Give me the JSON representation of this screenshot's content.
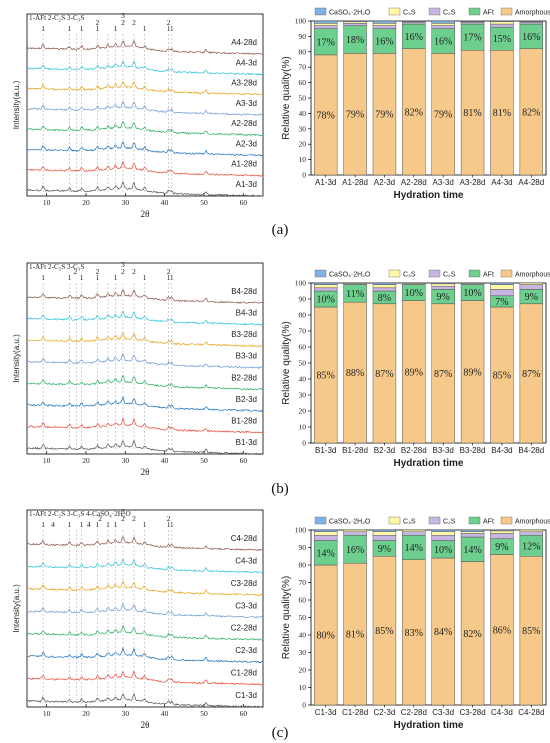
{
  "panels": [
    {
      "id": "a",
      "caption": "(a)",
      "xrd": {
        "legend": [
          "1-AFt",
          "2-C₂S",
          "3-C₃S"
        ],
        "xlabel": "2θ",
        "ylabel": "Intensity(a.u.)",
        "xticks": [
          10,
          20,
          30,
          40,
          50,
          60
        ],
        "xlim": [
          5,
          65
        ],
        "peak_labels": [
          {
            "text": "1",
            "x": 9.1
          },
          {
            "text": "1",
            "x": 15.8
          },
          {
            "text": "1",
            "x": 18.9
          },
          {
            "text": "1",
            "x": 22.9
          },
          {
            "text": "1",
            "x": 27.5
          },
          {
            "text": "1",
            "x": 34.9
          },
          {
            "text": "1",
            "x": 41.0
          },
          {
            "text": "1",
            "x": 41.8
          },
          {
            "text": "2",
            "x": 22.9
          },
          {
            "text": "2",
            "x": 29.4
          },
          {
            "text": "2",
            "x": 32.2
          },
          {
            "text": "2",
            "x": 41.0
          },
          {
            "text": "3",
            "x": 29.4
          }
        ],
        "patterns": [
          "A4-28d",
          "A4-3d",
          "A3-28d",
          "A3-3d",
          "A2-28d",
          "A2-3d",
          "A1-28d",
          "A1-3d"
        ],
        "colors": [
          "#8c564b",
          "#2ec4d9",
          "#e8a317",
          "#6c9bd2",
          "#27ae60",
          "#1e73be",
          "#e74c3c",
          "#555555"
        ]
      },
      "bars": {
        "legend": [
          "CaSO₄·2H₂O",
          "C₃S",
          "C₂S",
          "AFt",
          "Amorphous"
        ],
        "ylabel": "Relative quality(%)",
        "xlabel": "Hydration time",
        "yticks": [
          0,
          10,
          20,
          30,
          40,
          50,
          60,
          70,
          80,
          90,
          100
        ],
        "categories": [
          "A1-3d",
          "A1-28d",
          "A2-3d",
          "A2-28d",
          "A3-3d",
          "A3-28d",
          "A4-3d",
          "A4-28d"
        ],
        "amorphous": [
          78,
          79,
          79,
          82,
          79,
          81,
          81,
          82
        ],
        "aft": [
          17,
          18,
          16,
          16,
          16,
          17,
          15,
          16
        ],
        "amorphous_labels": [
          "78%",
          "79%",
          "79%",
          "82%",
          "79%",
          "81%",
          "81%",
          "82%"
        ],
        "aft_labels": [
          "17%",
          "18%",
          "16%",
          "16%",
          "16%",
          "17%",
          "15%",
          "16%"
        ],
        "c2s": [
          2,
          1.5,
          2,
          1,
          2,
          1,
          2,
          1
        ],
        "c3s": [
          1.5,
          1,
          1.5,
          0.5,
          1.5,
          0.5,
          1.5,
          0.5
        ],
        "gypsum": [
          1.5,
          0.5,
          1.5,
          0.5,
          1.5,
          0.5,
          0.5,
          0.5
        ]
      }
    },
    {
      "id": "b",
      "caption": "(b)",
      "xrd": {
        "legend": [
          "1-AFt",
          "2-C₂S",
          "3-C₃S"
        ],
        "xlabel": "2θ",
        "ylabel": "Intensity(a.u.)",
        "xticks": [
          10,
          20,
          30,
          40,
          50,
          60
        ],
        "xlim": [
          5,
          65
        ],
        "peak_labels": [
          {
            "text": "1",
            "x": 9.1
          },
          {
            "text": "1",
            "x": 15.8
          },
          {
            "text": "1",
            "x": 18.9
          },
          {
            "text": "1",
            "x": 22.9
          },
          {
            "text": "1",
            "x": 27.5
          },
          {
            "text": "1",
            "x": 34.9
          },
          {
            "text": "1",
            "x": 41.0
          },
          {
            "text": "1",
            "x": 41.8
          },
          {
            "text": "2",
            "x": 17.3
          },
          {
            "text": "2",
            "x": 22.9
          },
          {
            "text": "2",
            "x": 29.4
          },
          {
            "text": "2",
            "x": 32.2
          },
          {
            "text": "2",
            "x": 41.0
          },
          {
            "text": "3",
            "x": 29.4
          }
        ],
        "patterns": [
          "B4-28d",
          "B4-3d",
          "B3-28d",
          "B3-3d",
          "B2-28d",
          "B2-3d",
          "B1-28d",
          "B1-3d"
        ],
        "colors": [
          "#8c564b",
          "#2ec4d9",
          "#e8a317",
          "#6c9bd2",
          "#27ae60",
          "#1e73be",
          "#e74c3c",
          "#555555"
        ]
      },
      "bars": {
        "legend": [
          "CaSO₄·2H₂O",
          "C₃S",
          "C₂S",
          "AFt",
          "Amorphous"
        ],
        "ylabel": "Relative quality(%)",
        "xlabel": "Hydration time",
        "yticks": [
          0,
          10,
          20,
          30,
          40,
          50,
          60,
          70,
          80,
          90,
          100
        ],
        "categories": [
          "B1-3d",
          "B1-28d",
          "B2-3d",
          "B2-28d",
          "B3-3d",
          "B3-28d",
          "B4-3d",
          "B4-28d"
        ],
        "amorphous": [
          85,
          88,
          87,
          89,
          87,
          89,
          85,
          87
        ],
        "aft": [
          10,
          11,
          8,
          10,
          9,
          10,
          7,
          9
        ],
        "amorphous_labels": [
          "85%",
          "88%",
          "87%",
          "89%",
          "87%",
          "89%",
          "85%",
          "87%"
        ],
        "aft_labels": [
          "10%",
          "11%",
          "8%",
          "10%",
          "9%",
          "10%",
          "7%",
          "9%"
        ],
        "c2s": [
          2,
          0.5,
          2,
          0.5,
          2,
          0.5,
          4,
          3
        ],
        "c3s": [
          2,
          0.5,
          2,
          0.5,
          1.5,
          0.5,
          3,
          1
        ],
        "gypsum": [
          1,
          0,
          1,
          0,
          0.5,
          0,
          1,
          0
        ]
      }
    },
    {
      "id": "c",
      "caption": "(c)",
      "xrd": {
        "legend": [
          "1-AFt",
          "2-C₂S",
          "3-C₃S",
          "4-CaSO₄·2H₂O"
        ],
        "xlabel": "2θ",
        "ylabel": "Intensity(a.u.)",
        "xticks": [
          10,
          20,
          30,
          40,
          50,
          60
        ],
        "xlim": [
          5,
          65
        ],
        "peak_labels": [
          {
            "text": "1",
            "x": 9.1
          },
          {
            "text": "4",
            "x": 11.6
          },
          {
            "text": "1",
            "x": 15.8
          },
          {
            "text": "1",
            "x": 18.9
          },
          {
            "text": "4",
            "x": 20.7
          },
          {
            "text": "1",
            "x": 22.9
          },
          {
            "text": "1",
            "x": 25.6
          },
          {
            "text": "1",
            "x": 27.5
          },
          {
            "text": "1",
            "x": 34.9
          },
          {
            "text": "1",
            "x": 41.0
          },
          {
            "text": "1",
            "x": 41.8
          },
          {
            "text": "2",
            "x": 23.6
          },
          {
            "text": "2",
            "x": 29.4
          },
          {
            "text": "2",
            "x": 32.2
          },
          {
            "text": "2",
            "x": 41.0
          },
          {
            "text": "3",
            "x": 29.4
          }
        ],
        "patterns": [
          "C4-28d",
          "C4-3d",
          "C3-28d",
          "C3-3d",
          "C2-28d",
          "C2-3d",
          "C1-28d",
          "C1-3d"
        ],
        "colors": [
          "#8c564b",
          "#2ec4d9",
          "#e8a317",
          "#6c9bd2",
          "#27ae60",
          "#1e73be",
          "#e74c3c",
          "#555555"
        ]
      },
      "bars": {
        "legend": [
          "CaSO₄·2H₂O",
          "C₃S",
          "C₂S",
          "AFt",
          "Amorphous"
        ],
        "ylabel": "Relative quality(%)",
        "xlabel": "Hydration time",
        "yticks": [
          0,
          10,
          20,
          30,
          40,
          50,
          60,
          70,
          80,
          90,
          100
        ],
        "categories": [
          "C1-3d",
          "C1-28d",
          "C2-3d",
          "C2-28d",
          "C3-3d",
          "C3-28d",
          "C4-3d",
          "C4-28d"
        ],
        "amorphous": [
          80,
          81,
          85,
          83,
          84,
          82,
          86,
          85
        ],
        "aft": [
          14,
          16,
          9,
          14,
          10,
          14,
          9,
          12
        ],
        "amorphous_labels": [
          "80%",
          "81%",
          "85%",
          "83%",
          "84%",
          "82%",
          "86%",
          "85%"
        ],
        "aft_labels": [
          "14%",
          "16%",
          "9%",
          "14%",
          "10%",
          "14%",
          "9%",
          "12%"
        ],
        "c2s": [
          3,
          2,
          3,
          2,
          3,
          2,
          3,
          2
        ],
        "c3s": [
          2,
          1,
          2,
          1,
          2,
          1,
          1.5,
          1
        ],
        "gypsum": [
          1,
          0,
          1,
          0,
          1,
          1,
          0.5,
          0
        ]
      }
    }
  ],
  "colors": {
    "amorphous": "#f6c98a",
    "aft": "#6ccf8e",
    "c2s": "#c8b6e2",
    "c3s": "#fff6a6",
    "gypsum": "#7fb3e6",
    "stroke": "#333333"
  }
}
